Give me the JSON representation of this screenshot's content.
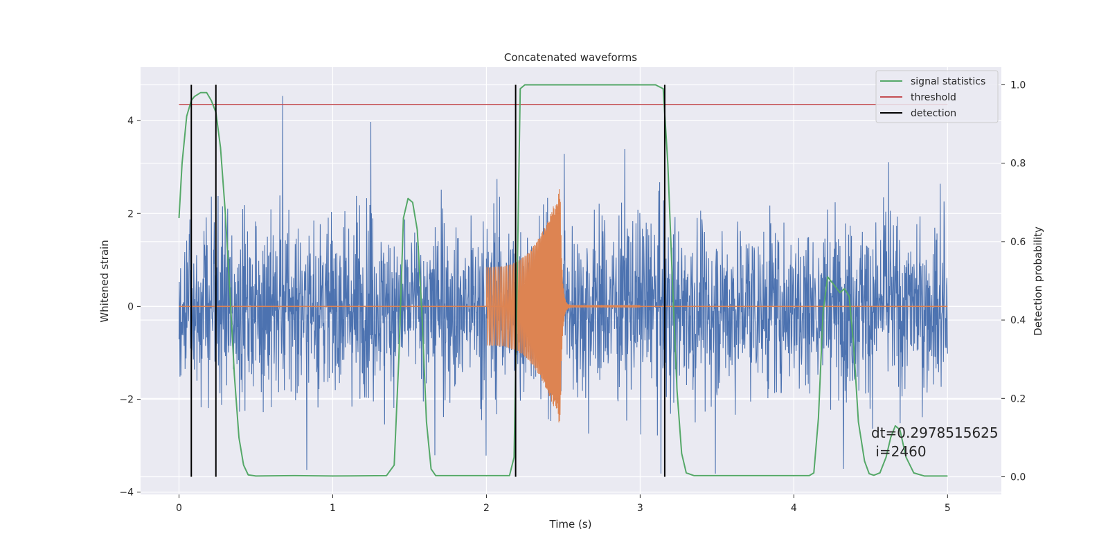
{
  "chart_data": {
    "type": "line",
    "title": "Concatenated waveforms",
    "xlabel": "Time (s)",
    "ylabel": "Whitened strain",
    "y2label": "Detection probability",
    "xlim": [
      -0.25,
      5.35
    ],
    "ylim": [
      -4.05,
      5.15
    ],
    "y2lim": [
      -0.045,
      1.045
    ],
    "x_ticks": [
      0,
      1,
      2,
      3,
      4,
      5
    ],
    "x_tick_labels": [
      "0",
      "1",
      "2",
      "3",
      "4",
      "5"
    ],
    "y_ticks": [
      4,
      2,
      0,
      -2,
      -4
    ],
    "y_tick_labels": [
      "4",
      "2",
      "0",
      "−2",
      "−4"
    ],
    "y2_ticks": [
      1.0,
      0.8,
      0.6,
      0.4,
      0.2,
      0.0
    ],
    "y2_tick_labels": [
      "1.0",
      "0.8",
      "0.6",
      "0.4",
      "0.2",
      "0.0"
    ],
    "grid": true,
    "legend_position": "top-right",
    "legend": [
      "signal statistics",
      "threshold",
      "detection"
    ],
    "colors": {
      "noise": "#4c72b0",
      "injection": "#dd8452",
      "statistic": "#55a868",
      "threshold": "#c44e52",
      "detection": "#000000",
      "background": "#eaeaf2",
      "grid": "#ffffff"
    },
    "signal_statistics": {
      "name": "signal statistics",
      "x": [
        0.0,
        0.02,
        0.05,
        0.08,
        0.1,
        0.14,
        0.18,
        0.21,
        0.24,
        0.27,
        0.3,
        0.33,
        0.36,
        0.39,
        0.42,
        0.45,
        0.5,
        0.75,
        1.0,
        1.35,
        1.4,
        1.43,
        1.46,
        1.49,
        1.52,
        1.55,
        1.58,
        1.61,
        1.64,
        1.67,
        2.15,
        2.18,
        2.2,
        2.22,
        2.25,
        2.5,
        3.1,
        3.15,
        3.18,
        3.21,
        3.24,
        3.27,
        3.3,
        3.35,
        4.1,
        4.13,
        4.16,
        4.19,
        4.22,
        4.26,
        4.3,
        4.33,
        4.36,
        4.39,
        4.42,
        4.46,
        4.49,
        4.52,
        4.56,
        4.6,
        4.63,
        4.66,
        4.69,
        4.73,
        4.78,
        4.85,
        5.0
      ],
      "y": [
        0.66,
        0.8,
        0.92,
        0.96,
        0.97,
        0.98,
        0.98,
        0.96,
        0.93,
        0.84,
        0.68,
        0.48,
        0.26,
        0.1,
        0.03,
        0.005,
        0.002,
        0.003,
        0.002,
        0.003,
        0.03,
        0.3,
        0.66,
        0.71,
        0.7,
        0.63,
        0.42,
        0.14,
        0.02,
        0.003,
        0.003,
        0.05,
        0.5,
        0.99,
        1.0,
        1.0,
        1.0,
        0.99,
        0.8,
        0.5,
        0.22,
        0.06,
        0.01,
        0.003,
        0.003,
        0.01,
        0.15,
        0.42,
        0.51,
        0.49,
        0.47,
        0.48,
        0.46,
        0.33,
        0.14,
        0.04,
        0.008,
        0.004,
        0.01,
        0.05,
        0.1,
        0.13,
        0.12,
        0.05,
        0.01,
        0.002,
        0.002
      ]
    },
    "threshold": {
      "name": "threshold",
      "value": 0.95,
      "x": [
        0.0,
        5.0
      ]
    },
    "detections": {
      "name": "detection",
      "x": [
        0.08,
        0.24,
        2.19,
        3.16
      ],
      "range": [
        0.0,
        1.0
      ]
    },
    "noise_trace": {
      "x_range": [
        0.0,
        5.0
      ],
      "approx_amplitude": 1.5,
      "peak_max": 4.7,
      "peak_min": -3.6
    },
    "injected_waveform": {
      "x": [
        2.0,
        2.5
      ],
      "start_amplitude": 0.85,
      "peak_amplitude": 2.6,
      "peak_time": 2.48,
      "ringdown_end": 3.0
    }
  },
  "annotation": {
    "line1": "dt=0.2978515625",
    "line2": " i=2460"
  }
}
